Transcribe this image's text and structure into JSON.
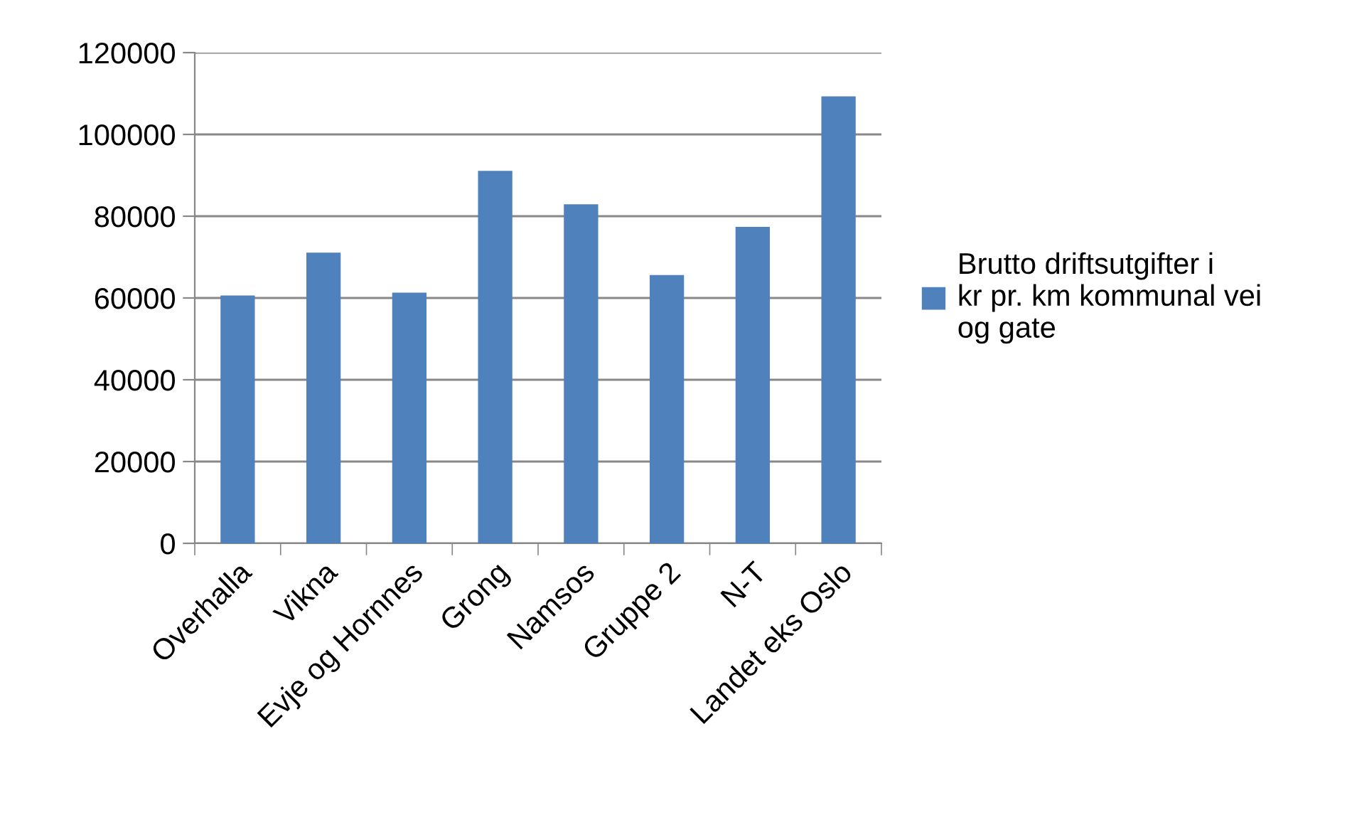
{
  "chart_data": {
    "type": "bar",
    "categories": [
      "Overhalla",
      "Vikna",
      "Evje og Hornnes",
      "Grong",
      "Namsos",
      "Gruppe 2",
      "N-T",
      "Landet eks Oslo"
    ],
    "series": [
      {
        "name": "Brutto driftsutgifter i kr pr. km kommunal vei og gate",
        "color": "#4f81bd",
        "values": [
          60600,
          71100,
          61300,
          91100,
          82900,
          65600,
          77400,
          109300
        ]
      }
    ],
    "ylim": [
      0,
      120000
    ],
    "yticks": [
      0,
      20000,
      40000,
      60000,
      80000,
      100000,
      120000
    ],
    "grid": "y",
    "legend": "right"
  }
}
